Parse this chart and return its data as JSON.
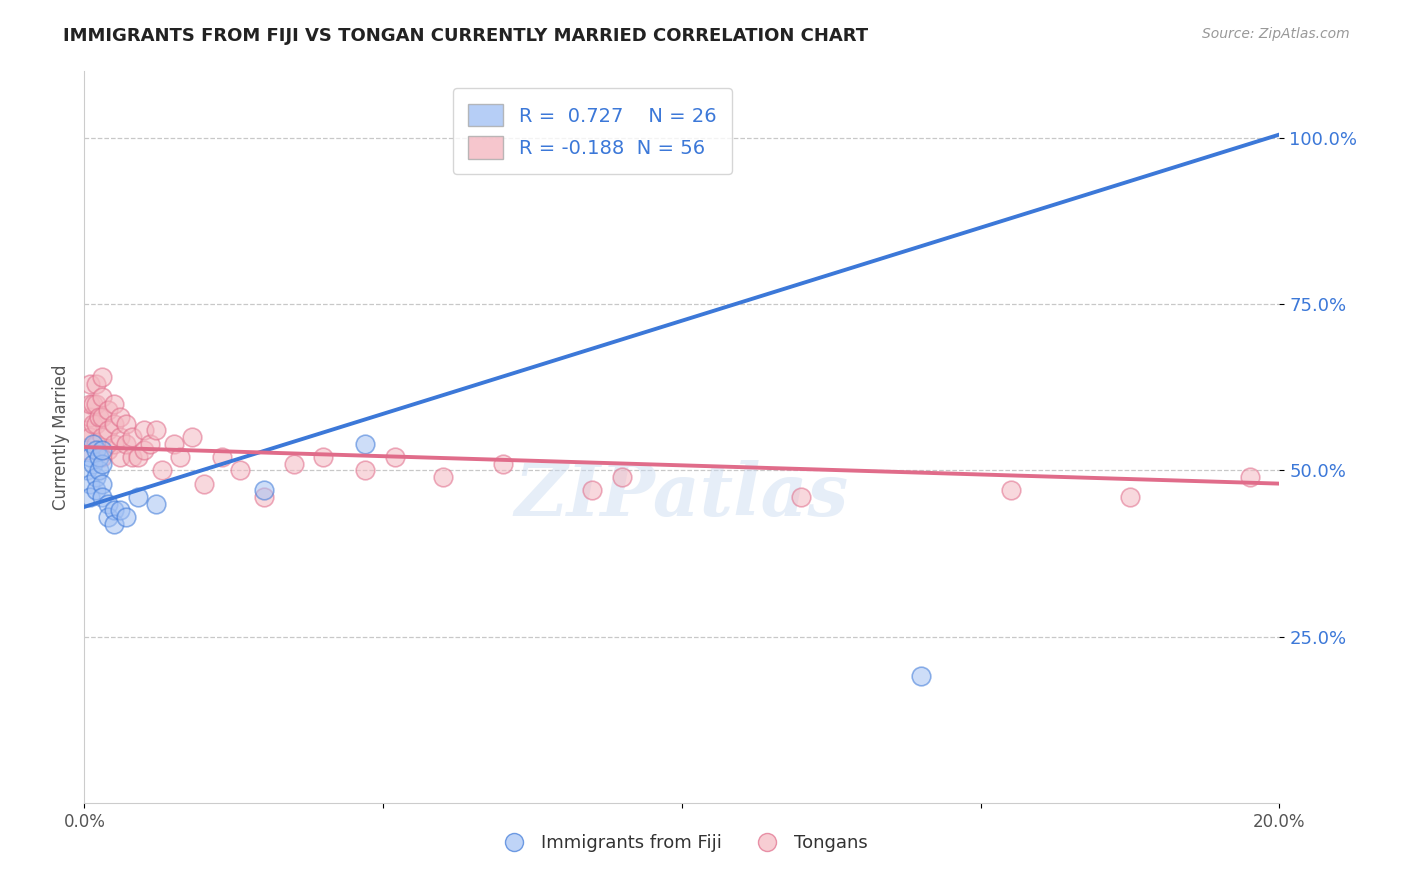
{
  "title": "IMMIGRANTS FROM FIJI VS TONGAN CURRENTLY MARRIED CORRELATION CHART",
  "source": "Source: ZipAtlas.com",
  "ylabel": "Currently Married",
  "legend_label1": "Immigrants from Fiji",
  "legend_label2": "Tongans",
  "R1": 0.727,
  "N1": 26,
  "R2": -0.188,
  "N2": 56,
  "xlim": [
    0.0,
    0.2
  ],
  "ylim": [
    0.0,
    1.1
  ],
  "xticks": [
    0.0,
    0.05,
    0.1,
    0.15,
    0.2
  ],
  "xtick_labels": [
    "0.0%",
    "",
    "",
    "",
    "20.0%"
  ],
  "ytick_positions": [
    0.25,
    0.5,
    0.75,
    1.0
  ],
  "ytick_labels": [
    "25.0%",
    "50.0%",
    "75.0%",
    "100.0%"
  ],
  "color_fiji": "#a4c2f4",
  "color_tonga": "#f4b8c1",
  "color_fiji_line": "#3c78d8",
  "color_tonga_line": "#e06c8a",
  "watermark": "ZIPatlas",
  "blue_line_x": [
    0.0,
    0.2
  ],
  "blue_line_y": [
    0.445,
    1.005
  ],
  "pink_line_x": [
    0.0,
    0.2
  ],
  "pink_line_y": [
    0.535,
    0.48
  ],
  "fiji_points_x": [
    0.0005,
    0.001,
    0.001,
    0.001,
    0.0015,
    0.0015,
    0.002,
    0.002,
    0.002,
    0.0025,
    0.0025,
    0.003,
    0.003,
    0.003,
    0.003,
    0.004,
    0.004,
    0.005,
    0.005,
    0.006,
    0.007,
    0.009,
    0.012,
    0.03,
    0.047,
    0.14
  ],
  "fiji_points_y": [
    0.5,
    0.52,
    0.48,
    0.46,
    0.54,
    0.51,
    0.49,
    0.47,
    0.53,
    0.5,
    0.52,
    0.48,
    0.46,
    0.51,
    0.53,
    0.45,
    0.43,
    0.44,
    0.42,
    0.44,
    0.43,
    0.46,
    0.45,
    0.47,
    0.54,
    0.19
  ],
  "tonga_points_x": [
    0.0005,
    0.0005,
    0.001,
    0.001,
    0.001,
    0.001,
    0.0015,
    0.0015,
    0.002,
    0.002,
    0.002,
    0.002,
    0.0025,
    0.003,
    0.003,
    0.003,
    0.003,
    0.003,
    0.004,
    0.004,
    0.004,
    0.005,
    0.005,
    0.005,
    0.006,
    0.006,
    0.006,
    0.007,
    0.007,
    0.008,
    0.008,
    0.009,
    0.01,
    0.01,
    0.011,
    0.012,
    0.013,
    0.015,
    0.016,
    0.018,
    0.02,
    0.023,
    0.026,
    0.03,
    0.035,
    0.04,
    0.047,
    0.052,
    0.06,
    0.07,
    0.085,
    0.09,
    0.12,
    0.155,
    0.175,
    0.195
  ],
  "tonga_points_y": [
    0.53,
    0.56,
    0.55,
    0.58,
    0.6,
    0.63,
    0.57,
    0.6,
    0.54,
    0.57,
    0.6,
    0.63,
    0.58,
    0.52,
    0.55,
    0.58,
    0.61,
    0.64,
    0.53,
    0.56,
    0.59,
    0.54,
    0.57,
    0.6,
    0.52,
    0.55,
    0.58,
    0.54,
    0.57,
    0.52,
    0.55,
    0.52,
    0.53,
    0.56,
    0.54,
    0.56,
    0.5,
    0.54,
    0.52,
    0.55,
    0.48,
    0.52,
    0.5,
    0.46,
    0.51,
    0.52,
    0.5,
    0.52,
    0.49,
    0.51,
    0.47,
    0.49,
    0.46,
    0.47,
    0.46,
    0.49
  ]
}
